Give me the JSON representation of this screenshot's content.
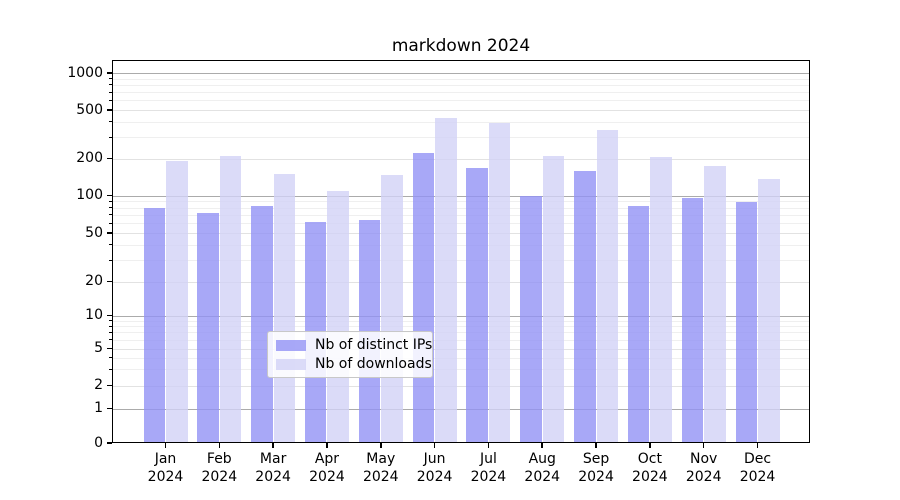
{
  "title": "markdown 2024",
  "legend": {
    "entries": [
      {
        "label": "Nb of distinct IPs"
      },
      {
        "label": "Nb of downloads"
      }
    ]
  },
  "colors": {
    "distinct_ips": "rgba(146,146,245,0.8)",
    "downloads": "rgba(210,210,246,0.8)",
    "grid_major": "#ababab",
    "grid_labeled": "#e2e2e2",
    "grid_minor": "#efefef",
    "spine": "#000000"
  },
  "x_axis": {
    "year": "2024",
    "months": [
      "Jan",
      "Feb",
      "Mar",
      "Apr",
      "May",
      "Jun",
      "Jul",
      "Aug",
      "Sep",
      "Oct",
      "Nov",
      "Dec"
    ]
  },
  "y_axis": {
    "ticks": [
      0,
      1,
      2,
      5,
      10,
      20,
      50,
      100,
      200,
      500,
      1000
    ],
    "minor_ticks": [
      3,
      4,
      6,
      7,
      8,
      9,
      30,
      40,
      60,
      70,
      80,
      90,
      300,
      400,
      600,
      700,
      800,
      900
    ]
  },
  "chart_data": {
    "type": "bar",
    "title": "markdown 2024",
    "categories": [
      "Jan 2024",
      "Feb 2024",
      "Mar 2024",
      "Apr 2024",
      "May 2024",
      "Jun 2024",
      "Jul 2024",
      "Aug 2024",
      "Sep 2024",
      "Oct 2024",
      "Nov 2024",
      "Dec 2024"
    ],
    "series": [
      {
        "name": "Nb of distinct IPs",
        "values": [
          79,
          73,
          82,
          61,
          64,
          222,
          166,
          100,
          159,
          83,
          96,
          88
        ]
      },
      {
        "name": "Nb of downloads",
        "values": [
          191,
          210,
          150,
          109,
          148,
          430,
          391,
          211,
          340,
          204,
          174,
          136
        ]
      }
    ],
    "xlabel": "",
    "ylabel": "",
    "yscale": "symlog",
    "ytick_values": [
      0,
      1,
      2,
      5,
      10,
      20,
      50,
      100,
      200,
      500,
      1000
    ],
    "ylim": [
      0,
      1300
    ],
    "grid": true,
    "legend_position": "lower center"
  }
}
